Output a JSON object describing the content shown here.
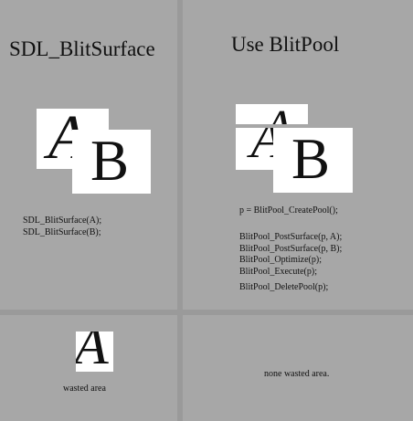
{
  "panels": {
    "blit_surface": {
      "title": "SDL_BlitSurface",
      "glyph_a": "A",
      "glyph_b": "B",
      "code_lines": [
        "SDL_BlitSurface(A);",
        "SDL_BlitSurface(B);"
      ]
    },
    "blit_pool": {
      "title": "Use BlitPool",
      "glyph_a": "A",
      "glyph_b": "B",
      "code_lines": [
        "p = BlitPool_CreatePool();",
        "BlitPool_PostSurface(p, A);",
        "BlitPool_PostSurface(p, B);",
        "BlitPool_Optimize(p);",
        "BlitPool_Execute(p);",
        "BlitPool_DeletePool(p);"
      ]
    }
  },
  "bottom": {
    "left_glyph": "A",
    "left_caption": "wasted area",
    "right_caption": "none wasted area."
  },
  "colors": {
    "background": "#a7a7a7",
    "divider": "#9a9a9a",
    "tile": "#ffffff",
    "text": "#111111"
  }
}
